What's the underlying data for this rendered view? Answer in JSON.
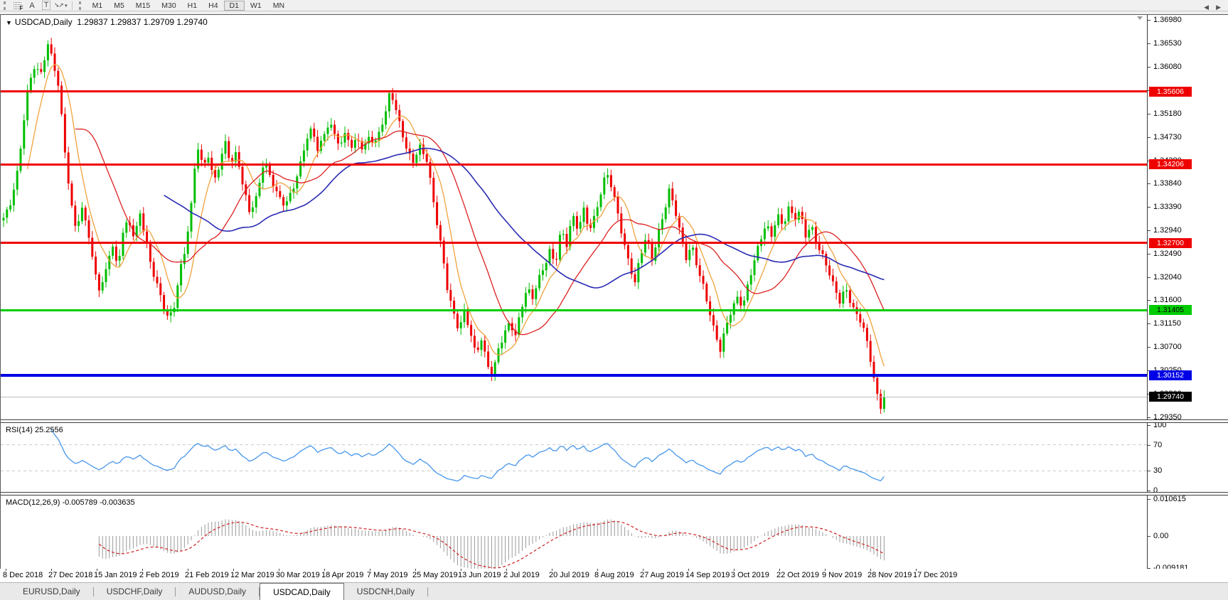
{
  "toolbar": {
    "icons": [
      {
        "name": "grid-f-icon"
      },
      {
        "name": "text-tool-icon",
        "glyph": "A"
      },
      {
        "name": "text-label-icon",
        "glyph": "T"
      },
      {
        "name": "cursor-mode-icon",
        "glyph": "➘➚"
      }
    ],
    "timeframes": [
      "M1",
      "M5",
      "M15",
      "M30",
      "H1",
      "H4",
      "D1",
      "W1",
      "MN"
    ],
    "active_timeframe": "D1"
  },
  "chart": {
    "title_symbol": "USDCAD,Daily",
    "title_values": "1.29837 1.29837 1.29709 1.29740",
    "axis_tick_prices": [
      1.3698,
      1.3653,
      1.3608,
      1.3563,
      1.3518,
      1.3473,
      1.3428,
      1.3384,
      1.3339,
      1.3294,
      1.3249,
      1.3204,
      1.316,
      1.3115,
      1.307,
      1.3025,
      1.298,
      1.2935
    ]
  },
  "rsi": {
    "label": "RSI(14) 25.2556",
    "ticks": [
      {
        "label": "100",
        "value": 100
      },
      {
        "label": "70",
        "value": 70
      },
      {
        "label": "30",
        "value": 30
      },
      {
        "label": "0",
        "value": 0
      }
    ],
    "dashed_levels": [
      70,
      30
    ]
  },
  "macd": {
    "label": "MACD(12,26,9) -0.005789 -0.003635",
    "ticks": [
      {
        "label": "0.010615",
        "value": 0.010615
      },
      {
        "label": "0.00",
        "value": 0
      },
      {
        "label": "-0.009181",
        "value": -0.009181
      }
    ]
  },
  "tabs": {
    "items": [
      "EURUSD,Daily",
      "USDCHF,Daily",
      "AUDUSD,Daily",
      "USDCAD,Daily",
      "USDCNH,Daily"
    ],
    "active": "USDCAD,Daily",
    "scroll_arrows": [
      "◀",
      "▶"
    ]
  },
  "colors": {
    "up": "#00BE00",
    "down": "#EE0000",
    "ma_fast": "#EFA23C",
    "ma_mid": "#DC2020",
    "ma_slow": "#2A2AB4",
    "rsi_line": "#4696EC",
    "rsi_dash": "#c8c8c8",
    "macd_hist": "#9a9a9a",
    "macd_signal": "#D02020",
    "current_line": "#bcbcbc",
    "current_label_bg": "#000000"
  },
  "chart_data": {
    "type": "candlestick",
    "symbol": "USDCAD",
    "timeframe": "Daily",
    "ohlc_display": {
      "open": "1.29837",
      "high": "1.29837",
      "low": "1.29709",
      "close": "1.29740"
    },
    "y_axis": {
      "min": 1.2935,
      "max": 1.3698,
      "tick_step": 0.0045
    },
    "current_price": {
      "price": 1.2974,
      "label": "1.29740"
    },
    "levels": [
      {
        "price": 1.35606,
        "label": "1.35606",
        "color": "#EE0000",
        "thickness": 3,
        "label_text": "#ffffff"
      },
      {
        "price": 1.34206,
        "label": "1.34206",
        "color": "#EE0000",
        "thickness": 3,
        "label_text": "#ffffff"
      },
      {
        "price": 1.327,
        "label": "1.32700",
        "color": "#EE0000",
        "thickness": 3,
        "label_text": "#ffffff"
      },
      {
        "price": 1.31405,
        "label": "1.31405",
        "color": "#00CC00",
        "thickness": 3,
        "label_text": "#000000"
      },
      {
        "price": 1.30152,
        "label": "1.30152",
        "color": "#0000E6",
        "thickness": 4,
        "label_text": "#ffffff"
      }
    ],
    "moving_averages": [
      {
        "name": "fast",
        "window": 8,
        "color": "#EFA23C"
      },
      {
        "name": "mid",
        "window": 22,
        "color": "#DC2020"
      },
      {
        "name": "slow",
        "window": 48,
        "color": "#2A2AB4"
      }
    ],
    "indicators": [
      {
        "name": "RSI",
        "period": 14,
        "value": 25.2556,
        "scale": [
          0,
          100
        ],
        "levels": [
          30,
          70
        ]
      },
      {
        "name": "MACD",
        "fast": 12,
        "slow": 26,
        "signal_period": 9,
        "macd": -0.005789,
        "signal": -0.003635,
        "axis_max": 0.010615,
        "axis_min": -0.009181
      }
    ],
    "x_dates": [
      "8 Dec 2018",
      "27 Dec 2018",
      "15 Jan 2019",
      "2 Feb 2019",
      "21 Feb 2019",
      "12 Mar 2019",
      "30 Mar 2019",
      "18 Apr 2019",
      "7 May 2019",
      "25 May 2019",
      "13 Jun 2019",
      "2 Jul 2019",
      "20 Jul 2019",
      "8 Aug 2019",
      "27 Aug 2019",
      "14 Sep 2019",
      "3 Oct 2019",
      "22 Oct 2019",
      "9 Nov 2019",
      "28 Nov 2019",
      "17 Dec 2019"
    ],
    "price_path": [
      [
        0,
        1.33
      ],
      [
        12,
        1.3335
      ],
      [
        24,
        1.3415
      ],
      [
        36,
        1.355
      ],
      [
        46,
        1.3605
      ],
      [
        56,
        1.3585
      ],
      [
        66,
        1.365
      ],
      [
        74,
        1.3625
      ],
      [
        82,
        1.357
      ],
      [
        90,
        1.3455
      ],
      [
        98,
        1.3345
      ],
      [
        106,
        1.329
      ],
      [
        114,
        1.333
      ],
      [
        122,
        1.3305
      ],
      [
        130,
        1.3235
      ],
      [
        140,
        1.318
      ],
      [
        148,
        1.3215
      ],
      [
        156,
        1.3265
      ],
      [
        164,
        1.3215
      ],
      [
        172,
        1.329
      ],
      [
        180,
        1.332
      ],
      [
        188,
        1.3285
      ],
      [
        196,
        1.333
      ],
      [
        204,
        1.327
      ],
      [
        212,
        1.3215
      ],
      [
        220,
        1.3185
      ],
      [
        228,
        1.3155
      ],
      [
        236,
        1.313
      ],
      [
        244,
        1.3155
      ],
      [
        252,
        1.3215
      ],
      [
        260,
        1.3255
      ],
      [
        268,
        1.3335
      ],
      [
        276,
        1.346
      ],
      [
        284,
        1.342
      ],
      [
        292,
        1.3445
      ],
      [
        300,
        1.339
      ],
      [
        308,
        1.342
      ],
      [
        316,
        1.3455
      ],
      [
        324,
        1.3415
      ],
      [
        332,
        1.3445
      ],
      [
        340,
        1.339
      ],
      [
        350,
        1.3335
      ],
      [
        360,
        1.3355
      ],
      [
        370,
        1.342
      ],
      [
        380,
        1.339
      ],
      [
        390,
        1.3365
      ],
      [
        400,
        1.335
      ],
      [
        410,
        1.337
      ],
      [
        420,
        1.3405
      ],
      [
        430,
        1.3465
      ],
      [
        438,
        1.349
      ],
      [
        446,
        1.3455
      ],
      [
        454,
        1.348
      ],
      [
        462,
        1.3505
      ],
      [
        470,
        1.347
      ],
      [
        478,
        1.345
      ],
      [
        486,
        1.348
      ],
      [
        494,
        1.3455
      ],
      [
        502,
        1.348
      ],
      [
        510,
        1.345
      ],
      [
        518,
        1.3475
      ],
      [
        526,
        1.345
      ],
      [
        534,
        1.3485
      ],
      [
        542,
        1.352
      ],
      [
        548,
        1.3572
      ],
      [
        556,
        1.353
      ],
      [
        564,
        1.349
      ],
      [
        572,
        1.344
      ],
      [
        580,
        1.342
      ],
      [
        590,
        1.345
      ],
      [
        600,
        1.343
      ],
      [
        610,
        1.3345
      ],
      [
        620,
        1.326
      ],
      [
        628,
        1.318
      ],
      [
        636,
        1.313
      ],
      [
        644,
        1.31
      ],
      [
        652,
        1.314
      ],
      [
        660,
        1.311
      ],
      [
        668,
        1.306
      ],
      [
        676,
        1.3085
      ],
      [
        684,
        1.303
      ],
      [
        692,
        1.301
      ],
      [
        700,
        1.3065
      ],
      [
        708,
        1.31
      ],
      [
        716,
        1.3125
      ],
      [
        724,
        1.3095
      ],
      [
        732,
        1.314
      ],
      [
        740,
        1.3175
      ],
      [
        748,
        1.316
      ],
      [
        756,
        1.32
      ],
      [
        764,
        1.323
      ],
      [
        772,
        1.326
      ],
      [
        780,
        1.323
      ],
      [
        788,
        1.329
      ],
      [
        796,
        1.326
      ],
      [
        804,
        1.332
      ],
      [
        812,
        1.33
      ],
      [
        820,
        1.334
      ],
      [
        828,
        1.33
      ],
      [
        836,
        1.332
      ],
      [
        844,
        1.336
      ],
      [
        852,
        1.34
      ],
      [
        860,
        1.3375
      ],
      [
        868,
        1.333
      ],
      [
        876,
        1.328
      ],
      [
        884,
        1.323
      ],
      [
        892,
        1.319
      ],
      [
        900,
        1.324
      ],
      [
        908,
        1.328
      ],
      [
        916,
        1.324
      ],
      [
        924,
        1.329
      ],
      [
        932,
        1.333
      ],
      [
        940,
        1.337
      ],
      [
        948,
        1.333
      ],
      [
        956,
        1.328
      ],
      [
        964,
        1.324
      ],
      [
        972,
        1.327
      ],
      [
        980,
        1.323
      ],
      [
        988,
        1.319
      ],
      [
        996,
        1.314
      ],
      [
        1004,
        1.309
      ],
      [
        1012,
        1.306
      ],
      [
        1020,
        1.311
      ],
      [
        1028,
        1.315
      ],
      [
        1036,
        1.317
      ],
      [
        1044,
        1.315
      ],
      [
        1052,
        1.319
      ],
      [
        1060,
        1.323
      ],
      [
        1068,
        1.327
      ],
      [
        1076,
        1.331
      ],
      [
        1084,
        1.329
      ],
      [
        1092,
        1.333
      ],
      [
        1100,
        1.33
      ],
      [
        1108,
        1.333
      ],
      [
        1116,
        1.331
      ],
      [
        1124,
        1.333
      ],
      [
        1132,
        1.329
      ],
      [
        1140,
        1.331
      ],
      [
        1148,
        1.327
      ],
      [
        1156,
        1.324
      ],
      [
        1164,
        1.321
      ],
      [
        1172,
        1.318
      ],
      [
        1180,
        1.316
      ],
      [
        1188,
        1.319
      ],
      [
        1196,
        1.316
      ],
      [
        1204,
        1.313
      ],
      [
        1212,
        1.311
      ],
      [
        1220,
        1.306
      ],
      [
        1228,
        1.301
      ],
      [
        1236,
        1.2955
      ],
      [
        1244,
        1.2974
      ]
    ]
  }
}
